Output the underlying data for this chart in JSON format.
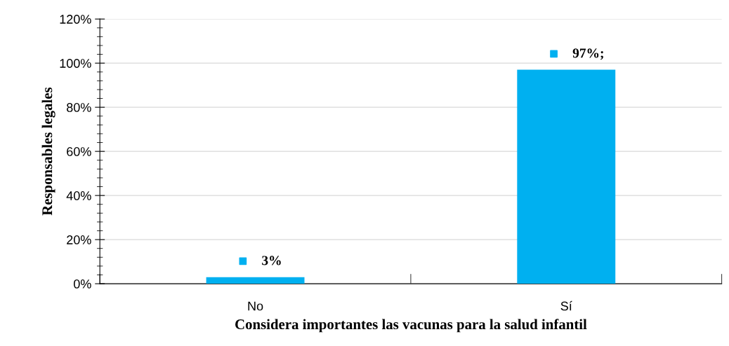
{
  "chart_data": {
    "type": "bar",
    "xlabel": "Considera importantes las vacunas para la salud infantil",
    "ylabel": "Responsables legales",
    "categories": [
      "No",
      "Sí"
    ],
    "values": [
      3,
      97
    ],
    "color": "#00b0f0",
    "value_labels": [
      "3%",
      "97%;"
    ],
    "ylim": [
      0,
      120
    ],
    "yticks": [
      {
        "value": 0,
        "label": "0%"
      },
      {
        "value": 20,
        "label": "20%"
      },
      {
        "value": 40,
        "label": "40%"
      },
      {
        "value": 60,
        "label": "60%"
      },
      {
        "value": 80,
        "label": "80%"
      },
      {
        "value": 100,
        "label": "100%"
      },
      {
        "value": 120,
        "label": "120%"
      }
    ],
    "grid": "y",
    "legend": false
  }
}
